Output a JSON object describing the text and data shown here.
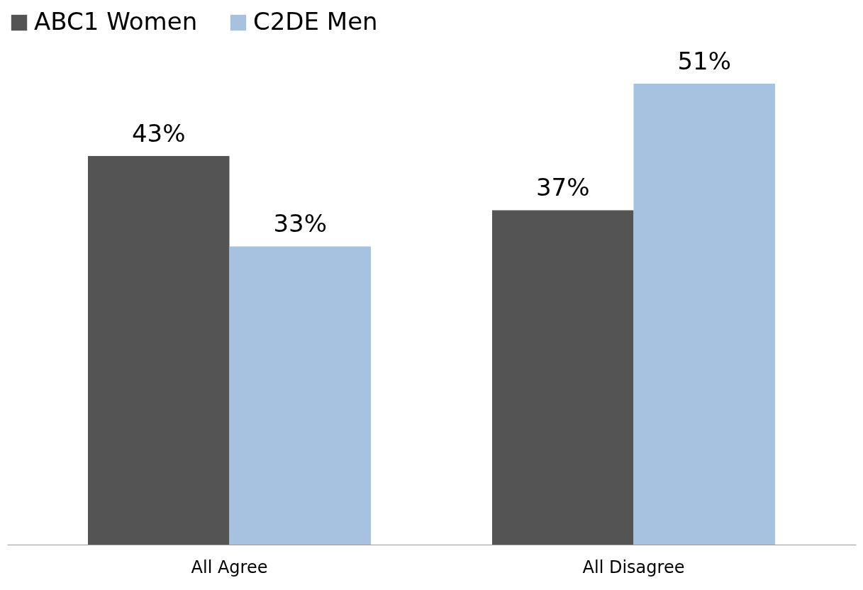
{
  "chart_data": {
    "type": "bar",
    "categories": [
      "All Agree",
      "All Disagree"
    ],
    "series": [
      {
        "name": "ABC1 Women",
        "color": "#545454",
        "values": [
          43,
          37
        ],
        "value_labels": [
          "43%",
          "37%"
        ]
      },
      {
        "name": "C2DE Men",
        "color": "#a7c2e0",
        "values": [
          33,
          51
        ],
        "value_labels": [
          "33%",
          "51%"
        ]
      }
    ],
    "legend": "top",
    "grid": false,
    "tick_labels": "x"
  }
}
